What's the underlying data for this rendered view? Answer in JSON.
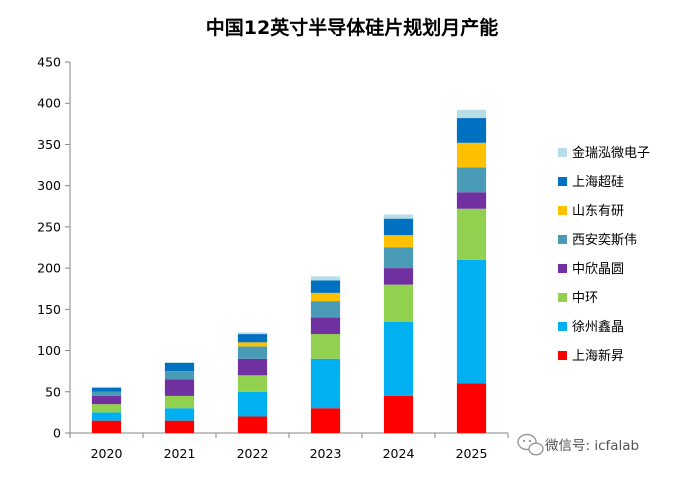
{
  "chart_data": {
    "type": "bar",
    "stacked": true,
    "title": "中国12英寸半导体硅片规划月产能",
    "xlabel": "",
    "ylabel": "",
    "categories": [
      "2020",
      "2021",
      "2022",
      "2023",
      "2024",
      "2025"
    ],
    "ylim": [
      0,
      450
    ],
    "yticks": [
      0,
      50,
      100,
      150,
      200,
      250,
      300,
      350,
      400,
      450
    ],
    "grid": false,
    "legend_position": "right",
    "series": [
      {
        "name": "上海新昇",
        "color": "#ff0000",
        "values": [
          15,
          15,
          20,
          30,
          45,
          60
        ]
      },
      {
        "name": "徐州鑫晶",
        "color": "#00b0f0",
        "values": [
          10,
          15,
          30,
          60,
          90,
          150
        ]
      },
      {
        "name": "中环",
        "color": "#92d050",
        "values": [
          10,
          15,
          20,
          30,
          45,
          62
        ]
      },
      {
        "name": "中欣晶圆",
        "color": "#7030a0",
        "values": [
          10,
          20,
          20,
          20,
          20,
          20
        ]
      },
      {
        "name": "西安奕斯伟",
        "color": "#4a9bb5",
        "values": [
          5,
          10,
          15,
          20,
          25,
          30
        ]
      },
      {
        "name": "山东有研",
        "color": "#ffc000",
        "values": [
          0,
          0,
          5,
          10,
          15,
          30
        ]
      },
      {
        "name": "上海超硅",
        "color": "#0070c0",
        "values": [
          5,
          10,
          10,
          15,
          20,
          30
        ]
      },
      {
        "name": "金瑞泓微电子",
        "color": "#b7dee8",
        "values": [
          1,
          1,
          2,
          5,
          5,
          10
        ]
      }
    ]
  },
  "watermark": {
    "text": "微信号: icfalab",
    "icon": "wechat-icon"
  }
}
